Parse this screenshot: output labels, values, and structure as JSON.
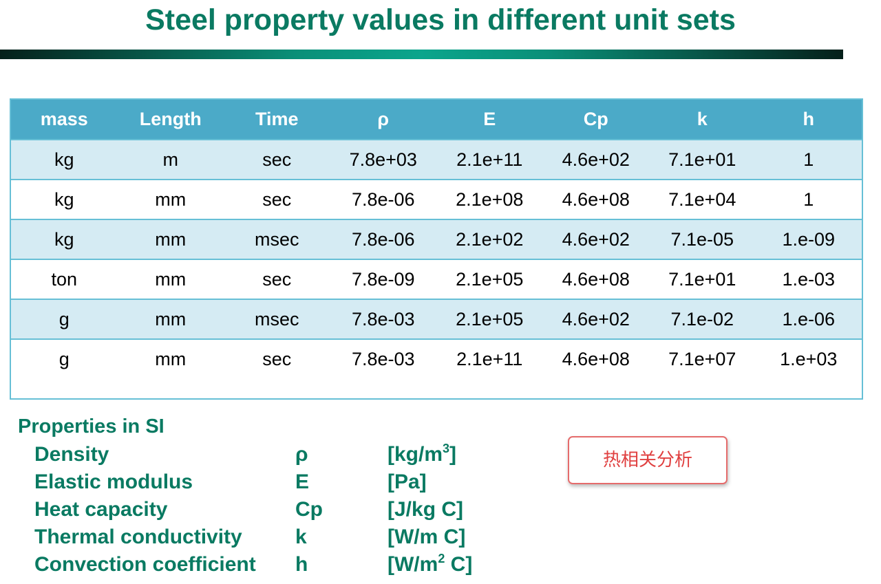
{
  "title": "Steel property values in different unit sets",
  "table": {
    "headers": [
      "mass",
      "Length",
      "Time",
      "ρ",
      "E",
      "Cp",
      "k",
      "h"
    ],
    "rows": [
      [
        "kg",
        "m",
        "sec",
        "7.8e+03",
        "2.1e+11",
        "4.6e+02",
        "7.1e+01",
        "1"
      ],
      [
        "kg",
        "mm",
        "sec",
        "7.8e-06",
        "2.1e+08",
        "4.6e+08",
        "7.1e+04",
        "1"
      ],
      [
        "kg",
        "mm",
        "msec",
        "7.8e-06",
        "2.1e+02",
        "4.6e+02",
        "7.1e-05",
        "1.e-09"
      ],
      [
        "ton",
        "mm",
        "sec",
        "7.8e-09",
        "2.1e+05",
        "4.6e+08",
        "7.1e+01",
        "1.e-03"
      ],
      [
        "g",
        "mm",
        "msec",
        "7.8e-03",
        "2.1e+05",
        "4.6e+02",
        "7.1e-02",
        "1.e-06"
      ],
      [
        "g",
        "mm",
        "sec",
        "7.8e-03",
        "2.1e+11",
        "4.6e+08",
        "7.1e+07",
        "1.e+03"
      ]
    ]
  },
  "properties": {
    "heading": "Properties in SI",
    "items": [
      {
        "name": "Density",
        "symbol": "ρ",
        "unit_before": "[kg/m",
        "unit_sup": "3",
        "unit_after": "]"
      },
      {
        "name": "Elastic modulus",
        "symbol": "E",
        "unit_before": "[Pa]",
        "unit_sup": "",
        "unit_after": ""
      },
      {
        "name": "Heat capacity",
        "symbol": "Cp",
        "unit_before": "[J/kg C]",
        "unit_sup": "",
        "unit_after": ""
      },
      {
        "name": "Thermal conductivity",
        "symbol": "k",
        "unit_before": "[W/m C]",
        "unit_sup": "",
        "unit_after": ""
      },
      {
        "name": "Convection coefficient",
        "symbol": "h",
        "unit_before": "[W/m",
        "unit_sup": "2",
        "unit_after": " C]"
      }
    ]
  },
  "note_button": {
    "label": "热相关分析"
  },
  "colors": {
    "title": "#0a7a62",
    "header_bg": "#4baac8",
    "row_alt_bg": "#d5ebf3",
    "table_border": "#66bfd6",
    "note_border": "#e56b6b",
    "note_text": "#e04040"
  }
}
